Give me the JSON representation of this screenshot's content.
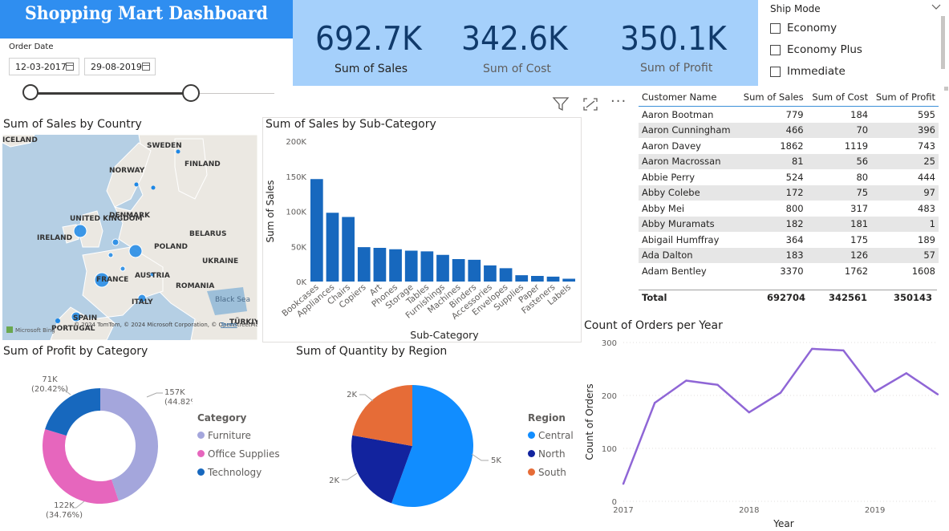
{
  "header": {
    "title": "Shopping Mart Dashboard"
  },
  "order_date": {
    "label": "Order Date",
    "start": "12-03-2017",
    "end": "29-08-2019"
  },
  "kpis": [
    {
      "value": "692.7K",
      "label": "Sum of Sales"
    },
    {
      "value": "342.6K",
      "label": "Sum of Cost"
    },
    {
      "value": "350.1K",
      "label": "Sum of Profit"
    }
  ],
  "ship_mode": {
    "title": "Ship Mode",
    "options": [
      "Economy",
      "Economy Plus",
      "Immediate"
    ]
  },
  "map": {
    "title": "Sum of Sales by Country",
    "labels": [
      "ICELAND",
      "SWEDEN",
      "FINLAND",
      "NORWAY",
      "UNITED KINGDOM",
      "DENMARK",
      "IRELAND",
      "BELARUS",
      "POLAND",
      "UKRAINE",
      "FRANCE",
      "AUSTRIA",
      "ROMANIA",
      "ITALY",
      "SPAIN",
      "PORTUGAL",
      "Black Sea",
      "TÜRKIY"
    ],
    "attribution": "© 2024 TomTom, © 2024 Microsoft Corporation, © OpenStreetMap",
    "terms": "Terms",
    "brand": "Microsoft Bing"
  },
  "subcat_chart": {
    "title": "Sum of Sales by Sub-Category",
    "chart_data": {
      "type": "bar",
      "title": "Sum of Sales by Sub-Category",
      "xlabel": "Sub-Category",
      "ylabel": "Sum of Sales",
      "categories": [
        "Bookcases",
        "Appliances",
        "Chairs",
        "Copiers",
        "Art",
        "Phones",
        "Storage",
        "Tables",
        "Furnishings",
        "Machines",
        "Binders",
        "Accessories",
        "Envelopes",
        "Supplies",
        "Paper",
        "Fasteners",
        "Labels"
      ],
      "values": [
        146000,
        98000,
        92000,
        49000,
        48000,
        46000,
        44000,
        43000,
        38000,
        32000,
        31000,
        23000,
        19000,
        9000,
        8000,
        7000,
        4000
      ],
      "ylim": [
        0,
        200000
      ],
      "yticks": [
        "0K",
        "50K",
        "100K",
        "150K",
        "200K"
      ]
    }
  },
  "table": {
    "columns": [
      "Customer Name",
      "Sum of Sales",
      "Sum of Cost",
      "Sum of Profit"
    ],
    "rows": [
      [
        "Aaron Bootman",
        "779",
        "184",
        "595"
      ],
      [
        "Aaron Cunningham",
        "466",
        "70",
        "396"
      ],
      [
        "Aaron Davey",
        "1862",
        "1119",
        "743"
      ],
      [
        "Aaron Macrossan",
        "81",
        "56",
        "25"
      ],
      [
        "Abbie Perry",
        "524",
        "80",
        "444"
      ],
      [
        "Abby Colebe",
        "172",
        "75",
        "97"
      ],
      [
        "Abby Mei",
        "800",
        "317",
        "483"
      ],
      [
        "Abby Muramats",
        "182",
        "181",
        "1"
      ],
      [
        "Abigail Humffray",
        "364",
        "175",
        "189"
      ],
      [
        "Ada Dalton",
        "183",
        "126",
        "57"
      ],
      [
        "Adam Bentley",
        "3370",
        "1762",
        "1608"
      ]
    ],
    "total": [
      "Total",
      "692704",
      "342561",
      "350143"
    ]
  },
  "profit_donut": {
    "title": "Sum of Profit by Category",
    "legend_title": "Category",
    "chart_data": {
      "type": "pie",
      "categories": [
        "Furniture",
        "Office Supplies",
        "Technology"
      ],
      "values": [
        157000,
        122000,
        71000
      ],
      "labels": [
        [
          "157K",
          "(44.82%)"
        ],
        [
          "122K",
          "(34.76%)"
        ],
        [
          "71K",
          "(20.42%)"
        ]
      ],
      "colors": [
        "#a4a6dc",
        "#e666bd",
        "#1768be"
      ]
    }
  },
  "region_pie": {
    "title": "Sum of Quantity by Region",
    "legend_title": "Region",
    "chart_data": {
      "type": "pie",
      "categories": [
        "Central",
        "North",
        "South"
      ],
      "values": [
        5000,
        2000,
        2000
      ],
      "labels": [
        "5K",
        "2K",
        "2K"
      ],
      "colors": [
        "#118dff",
        "#12239e",
        "#e66c37"
      ]
    }
  },
  "orders_line": {
    "title": "Count of Orders per Year",
    "chart_data": {
      "type": "line",
      "xlabel": "Year",
      "ylabel": "Count of Orders",
      "x": [
        2017.0,
        2017.25,
        2017.5,
        2017.75,
        2018.0,
        2018.25,
        2018.5,
        2018.75,
        2019.0,
        2019.25,
        2019.5
      ],
      "y": [
        33,
        186,
        228,
        220,
        168,
        205,
        288,
        285,
        207,
        242,
        202
      ],
      "xticks": [
        "2017",
        "2018",
        "2019"
      ],
      "yticks": [
        "0",
        "100",
        "200",
        "300"
      ],
      "ylim": [
        0,
        300
      ],
      "color": "#8f66d6"
    }
  }
}
